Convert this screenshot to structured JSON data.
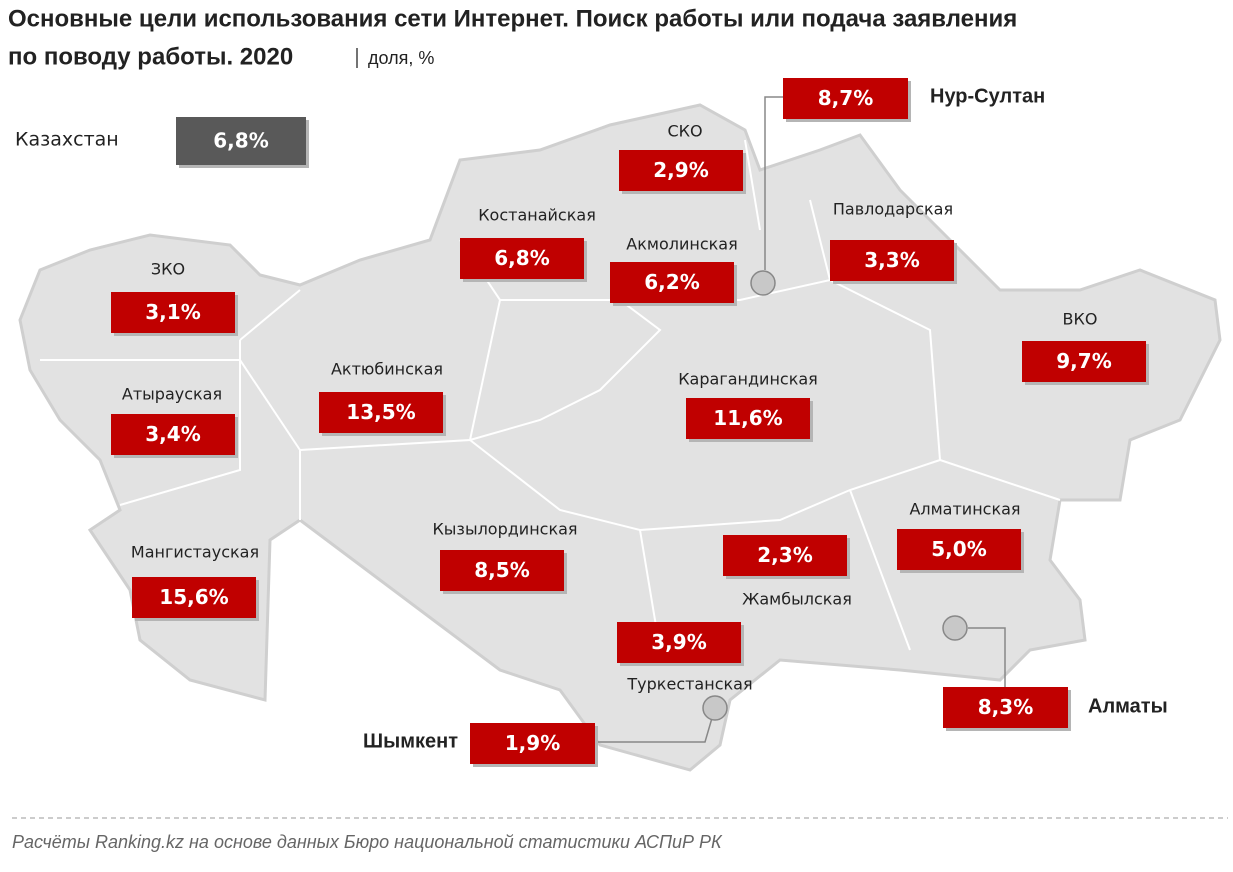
{
  "header": {
    "title_lines": [
      "Основные цели использования  сети Интернет. Поиск работы или подача заявления",
      "по поводу работы. 2020"
    ],
    "subtitle": "доля, %"
  },
  "national": {
    "name": "Казахстан",
    "value": "6,8%"
  },
  "regions": [
    {
      "name": "СКО",
      "value": "2,9%"
    },
    {
      "name": "Костанайская",
      "value": "6,8%"
    },
    {
      "name": "Акмолинская",
      "value": "6,2%"
    },
    {
      "name": "Павлодарская",
      "value": "3,3%"
    },
    {
      "name": "ЗКО",
      "value": "3,1%"
    },
    {
      "name": "Актюбинская",
      "value": "13,5%"
    },
    {
      "name": "Карагандинская",
      "value": "11,6%"
    },
    {
      "name": "ВКО",
      "value": "9,7%"
    },
    {
      "name": "Атырауская",
      "value": "3,4%"
    },
    {
      "name": "Мангистауская",
      "value": "15,6%"
    },
    {
      "name": "Кызылординская",
      "value": "8,5%"
    },
    {
      "name": "Жамбылская",
      "value": "2,3%"
    },
    {
      "name": "Алматинская",
      "value": "5,0%"
    },
    {
      "name": "Туркестанская",
      "value": "3,9%"
    }
  ],
  "cities": [
    {
      "name": "Нур-Султан",
      "value": "8,7%"
    },
    {
      "name": "Шымкент",
      "value": "1,9%"
    },
    {
      "name": "Алматы",
      "value": "8,3%"
    }
  ],
  "source": "Расчёты Ranking.kz на основе данных  Бюро национальной  статистики АСПиР РК"
}
